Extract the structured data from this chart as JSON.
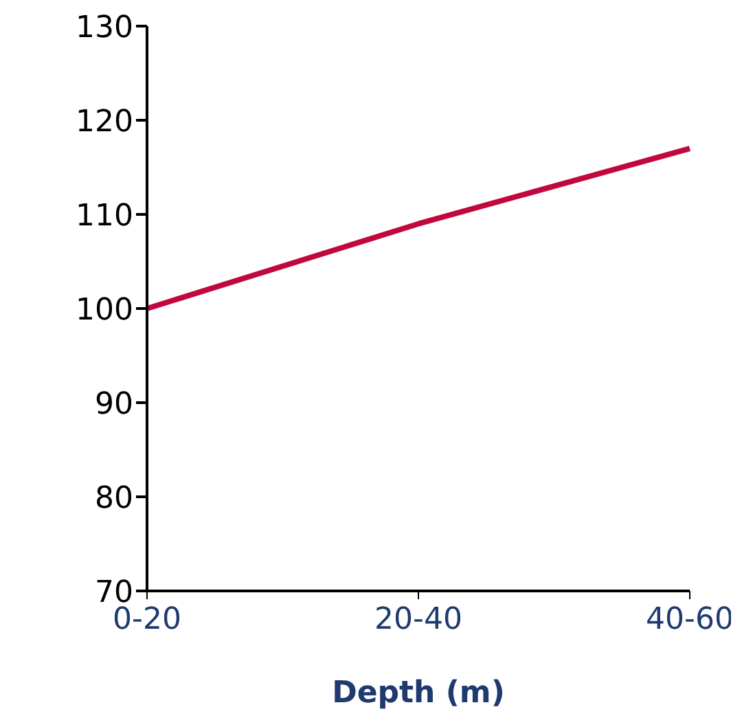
{
  "chart_data": {
    "type": "line",
    "xlabel": "Depth (m)",
    "categories": [
      "0-20",
      "20-40",
      "40-60"
    ],
    "series": [
      {
        "color": "#c0083f",
        "values": [
          100,
          109,
          117
        ]
      }
    ],
    "ylim": [
      70,
      130
    ],
    "yticks": [
      70,
      80,
      90,
      100,
      110,
      120,
      130
    ],
    "grid": false,
    "legend": false,
    "marker": "none",
    "line_style": "solid"
  }
}
